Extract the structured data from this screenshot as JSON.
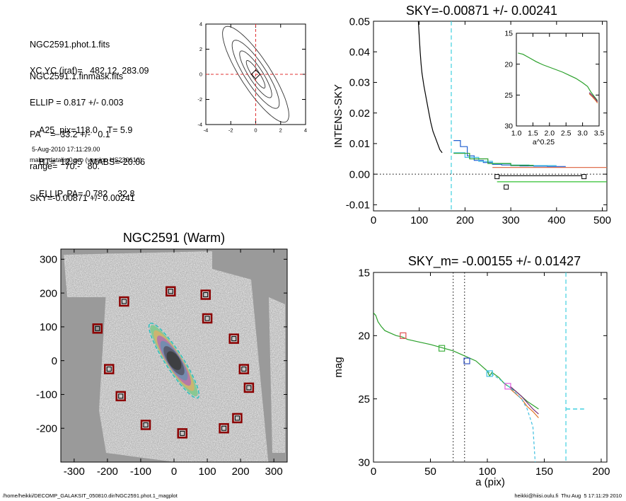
{
  "header": {
    "lines1": [
      "NGC2591.phot.1.fits",
      "NGC2591.1.finmask.fits"
    ],
    "lines2": [
      "XC,YC (iraf)=   482.12, 283.09",
      "ELLIP = 0.817 +/- 0.003",
      "PA    =  33.2 +/-   0.1",
      "range=   70.-   80.",
      "SKY=-0.00871 +/- 0.00241"
    ],
    "lines3": [
      "A25_pix=118.0    T= 5.9",
      "BT=  12.95   MABS=-20.06",
      "ELLIP, PA= 0.782    32.8"
    ],
    "date": "5-Aug-2010 17:11:29.00",
    "program": "make_datalist0.pro (version HS230610)"
  },
  "footer": {
    "path": "/home/heikki/DECOMP_GALAKSIT_050810.dir/NGC2591.phot.1_magplot",
    "user": "heikki@hiisi.oulu.fi  Thu Aug  5 17:11:29 2010"
  },
  "chart_data": [
    {
      "type": "line",
      "panel": "contour",
      "title": "",
      "xticks": [
        "-4",
        "-2",
        "0",
        "2",
        "4"
      ],
      "yticks": [
        "4",
        "2",
        "0",
        "-2",
        "-4"
      ],
      "xlim": [
        -4,
        4
      ],
      "ylim": [
        -4,
        4
      ],
      "contours_axes": [
        [
          1.3,
          0.3
        ],
        [
          2.2,
          0.55
        ],
        [
          3.2,
          0.85
        ],
        [
          4.5,
          1.2
        ]
      ],
      "contour_angle_deg": 33.2,
      "colors": {
        "crosshair": "#e03030"
      }
    },
    {
      "type": "line",
      "panel": "sky",
      "title": "SKY=-0.00871 +/- 0.00241",
      "xlabel": "",
      "ylabel": "INTENS-SKY",
      "xlim": [
        0,
        510
      ],
      "ylim": [
        -0.012,
        0.05
      ],
      "xticks": [
        "0",
        "100",
        "200",
        "300",
        "400",
        "500"
      ],
      "yticks": [
        "0.05",
        "0.04",
        "0.03",
        "0.02",
        "0.01",
        "0.00",
        "-0.01"
      ],
      "vline_x": 170,
      "series": [
        {
          "color": "#000000",
          "x": [
            98,
            100,
            102,
            104,
            106,
            110,
            115,
            120,
            125,
            130,
            135,
            140,
            145,
            150
          ],
          "y": [
            0.05,
            0.045,
            0.04,
            0.036,
            0.033,
            0.029,
            0.025,
            0.021,
            0.017,
            0.014,
            0.012,
            0.01,
            0.008,
            0.007
          ]
        },
        {
          "color": "#1f5fd0",
          "x": [
            175,
            190,
            190,
            205,
            205,
            220,
            220,
            240,
            240,
            260,
            260,
            280,
            280,
            300,
            300,
            320,
            320,
            350,
            350,
            380,
            380,
            420
          ],
          "y": [
            0.011,
            0.011,
            0.009,
            0.009,
            0.006,
            0.006,
            0.0045,
            0.0045,
            0.0038,
            0.0038,
            0.0032,
            0.0032,
            0.003,
            0.003,
            0.0028,
            0.0028,
            0.0027,
            0.0027,
            0.0026,
            0.0026,
            0.0025,
            0.0025
          ]
        },
        {
          "color": "#40c0e0",
          "x": [
            175,
            200,
            200,
            230,
            230,
            260,
            260,
            300,
            300,
            340,
            340,
            400
          ],
          "y": [
            0.007,
            0.007,
            0.0055,
            0.0055,
            0.0042,
            0.0042,
            0.0034,
            0.0034,
            0.003,
            0.003,
            0.0028,
            0.0028
          ]
        },
        {
          "color": "#2aa02a",
          "x": [
            175,
            210,
            210,
            250,
            250,
            300,
            300,
            350
          ],
          "y": [
            0.0068,
            0.0068,
            0.005,
            0.005,
            0.0035,
            0.0035,
            0.0029,
            0.0029
          ]
        },
        {
          "color": "#e07050",
          "x": [
            260,
            510
          ],
          "y": [
            0.0022,
            0.0022
          ]
        },
        {
          "color": "#000000",
          "x": [
            270,
            460
          ],
          "y": [
            -0.0005,
            -0.0005
          ]
        },
        {
          "color": "#30c030",
          "x": [
            270,
            510
          ],
          "y": [
            -0.0025,
            -0.0025
          ]
        }
      ],
      "points": [
        {
          "x": 270,
          "y": -0.0008
        },
        {
          "x": 290,
          "y": -0.0042
        },
        {
          "x": 460,
          "y": -0.0008
        }
      ]
    },
    {
      "type": "line",
      "panel": "sky-inset",
      "title": "",
      "xlabel": "a^0.25",
      "ylabel": "",
      "xlim": [
        1.0,
        3.5
      ],
      "ylim": [
        30,
        15
      ],
      "xticks": [
        "1.0",
        "1.5",
        "2.0",
        "2.5",
        "3.0",
        "3.5"
      ],
      "yticks": [
        "15",
        "20",
        "25",
        "30"
      ],
      "series": [
        {
          "color": "#2aa02a",
          "x": [
            1.05,
            1.2,
            1.4,
            1.6,
            1.8,
            2.0,
            2.2,
            2.4,
            2.6,
            2.8,
            3.0,
            3.15,
            3.25,
            3.35,
            3.45
          ],
          "y": [
            18.2,
            18.4,
            19.0,
            19.6,
            20.1,
            20.5,
            20.9,
            21.3,
            21.8,
            22.3,
            23.0,
            23.6,
            24.5,
            25.2,
            25.9
          ]
        },
        {
          "color": "#e07020",
          "x": [
            3.2,
            3.3,
            3.4,
            3.45
          ],
          "y": [
            24.8,
            25.3,
            25.9,
            26.3
          ]
        },
        {
          "color": "#7a2a7a",
          "x": [
            3.2,
            3.3,
            3.4,
            3.45
          ],
          "y": [
            24.6,
            25.1,
            25.7,
            26.1
          ]
        }
      ]
    },
    {
      "type": "heatmap",
      "panel": "image",
      "title": "NGC2591 (Warm)",
      "xlim": [
        -340,
        340
      ],
      "ylim": [
        -300,
        330
      ],
      "xticks": [
        "-300",
        "-200",
        "-100",
        "0",
        "100",
        "200",
        "300"
      ],
      "yticks": [
        "300",
        "200",
        "100",
        "0",
        "-100",
        "-200"
      ],
      "galaxy_axes": [
        125,
        24
      ],
      "galaxy_angle_deg": 33.2,
      "boxes": [
        [
          -10,
          205
        ],
        [
          95,
          195
        ],
        [
          -150,
          175
        ],
        [
          100,
          125
        ],
        [
          -230,
          95
        ],
        [
          180,
          65
        ],
        [
          -195,
          -25
        ],
        [
          -160,
          -105
        ],
        [
          225,
          -80
        ],
        [
          190,
          -170
        ],
        [
          -85,
          -190
        ],
        [
          25,
          -215
        ],
        [
          150,
          -200
        ],
        [
          210,
          -25
        ]
      ],
      "colors": {
        "box": "#8b0000",
        "ellipse": "#22c0c0"
      }
    },
    {
      "type": "line",
      "panel": "profile",
      "title": "SKY_m= -0.00155 +/- 0.01427",
      "xlabel": "a (pix)",
      "ylabel": "mag",
      "xlim": [
        0,
        205
      ],
      "ylim": [
        30,
        15
      ],
      "xticks": [
        "0",
        "50",
        "100",
        "150",
        "200"
      ],
      "yticks": [
        "15",
        "20",
        "25",
        "30"
      ],
      "vlines_dotted": [
        70,
        80
      ],
      "vline_dashed": 169,
      "sky_level_x": [
        169,
        185
      ],
      "sky_level_y": 25.8,
      "series": [
        {
          "color": "#2aa02a",
          "x": [
            0,
            2,
            4,
            7,
            10,
            15,
            20,
            25,
            30,
            40,
            50,
            60,
            70,
            80,
            90,
            95,
            100,
            102,
            104,
            110,
            115,
            120,
            125,
            130,
            135,
            140,
            145
          ],
          "y": [
            18.2,
            18.4,
            18.9,
            19.3,
            19.6,
            19.8,
            20.0,
            20.1,
            20.3,
            20.5,
            20.7,
            20.95,
            21.2,
            21.6,
            22.0,
            22.4,
            22.8,
            23.2,
            22.9,
            23.3,
            23.8,
            24.1,
            24.4,
            24.8,
            25.2,
            25.5,
            25.8
          ]
        },
        {
          "color": "#e07020",
          "x": [
            120,
            125,
            130,
            135,
            140,
            145
          ],
          "y": [
            24.2,
            24.6,
            25.0,
            25.6,
            26.0,
            26.5
          ]
        },
        {
          "color": "#7a2a7a",
          "x": [
            120,
            125,
            130,
            135,
            140,
            145
          ],
          "y": [
            24.0,
            24.4,
            24.8,
            25.3,
            25.8,
            26.2
          ]
        },
        {
          "color": "#40c0e0",
          "x": [
            100,
            110,
            120,
            130,
            135,
            140,
            142
          ],
          "y": [
            22.8,
            23.4,
            24.1,
            25.0,
            25.8,
            27.2,
            30
          ]
        }
      ],
      "points": [
        {
          "x": 26,
          "y": 20.0,
          "color": "#e05050"
        },
        {
          "x": 60,
          "y": 21.0,
          "color": "#40b040"
        },
        {
          "x": 82,
          "y": 22.0,
          "color": "#3050c0"
        },
        {
          "x": 102,
          "y": 23.0,
          "color": "#40c0e0"
        },
        {
          "x": 118,
          "y": 24.0,
          "color": "#e060e0"
        }
      ]
    }
  ]
}
